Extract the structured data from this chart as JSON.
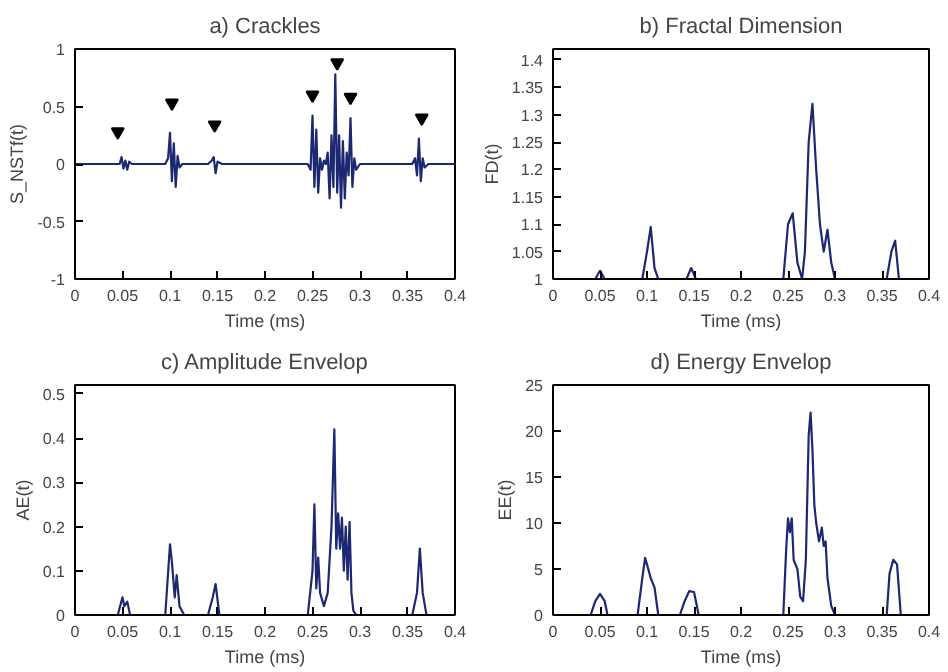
{
  "chart_data": [
    {
      "type": "line",
      "title": "a) Crackles",
      "xlabel": "Time (ms)",
      "ylabel": "S_NSTf(t)",
      "xlim": [
        0,
        0.4
      ],
      "ylim": [
        -1,
        1
      ],
      "xticks": [
        0,
        0.05,
        0.1,
        0.15,
        0.2,
        0.25,
        0.3,
        0.35,
        0.4
      ],
      "yticks": [
        -1,
        -0.5,
        0,
        0.5,
        1
      ],
      "grid": false,
      "series": [
        {
          "color": "#1c2872",
          "x": [
            0,
            0.047,
            0.049,
            0.051,
            0.053,
            0.055,
            0.057,
            0.06,
            0.095,
            0.098,
            0.1,
            0.102,
            0.104,
            0.106,
            0.108,
            0.11,
            0.113,
            0.14,
            0.144,
            0.146,
            0.148,
            0.15,
            0.155,
            0.245,
            0.248,
            0.25,
            0.252,
            0.254,
            0.256,
            0.258,
            0.26,
            0.262,
            0.264,
            0.266,
            0.268,
            0.27,
            0.272,
            0.274,
            0.276,
            0.278,
            0.28,
            0.282,
            0.284,
            0.286,
            0.288,
            0.29,
            0.292,
            0.294,
            0.296,
            0.3,
            0.355,
            0.358,
            0.36,
            0.362,
            0.364,
            0.366,
            0.368,
            0.372,
            0.4
          ],
          "values": [
            0,
            0,
            0.06,
            -0.04,
            0.03,
            -0.05,
            0.02,
            0,
            0,
            0.05,
            0.27,
            -0.15,
            0.18,
            -0.2,
            0.07,
            -0.03,
            0,
            0,
            0.03,
            0.06,
            -0.08,
            0.02,
            0,
            0,
            -0.05,
            0.42,
            -0.2,
            0.3,
            -0.25,
            0.05,
            -0.05,
            0.03,
            0,
            0.1,
            -0.3,
            0.25,
            -0.2,
            0.78,
            -0.25,
            0.25,
            -0.38,
            0.2,
            -0.3,
            0.1,
            -0.1,
            0.4,
            -0.2,
            0.05,
            -0.05,
            0,
            0,
            0.05,
            -0.1,
            0.22,
            -0.15,
            0.05,
            -0.03,
            0,
            0
          ]
        },
        {
          "type": "scatter",
          "marker": "triangle",
          "color": "#000000",
          "x": [
            0.045,
            0.102,
            0.147,
            0.25,
            0.276,
            0.29,
            0.365
          ],
          "values": [
            0.28,
            0.53,
            0.34,
            0.6,
            0.88,
            0.58,
            0.4
          ]
        }
      ]
    },
    {
      "type": "line",
      "title": "b) Fractal Dimension",
      "xlabel": "Time (ms)",
      "ylabel": "FD(t)",
      "xlim": [
        0,
        0.4
      ],
      "ylim": [
        1,
        1.42
      ],
      "xticks": [
        0,
        0.05,
        0.1,
        0.15,
        0.2,
        0.25,
        0.3,
        0.35,
        0.4
      ],
      "yticks": [
        1,
        1.05,
        1.1,
        1.15,
        1.2,
        1.25,
        1.3,
        1.35,
        1.4
      ],
      "grid": false,
      "series": [
        {
          "color": "#1c2872",
          "x": [
            0,
            0.045,
            0.05,
            0.055,
            0.095,
            0.1,
            0.104,
            0.108,
            0.112,
            0.142,
            0.147,
            0.152,
            0.245,
            0.25,
            0.255,
            0.26,
            0.265,
            0.268,
            0.272,
            0.276,
            0.28,
            0.284,
            0.288,
            0.292,
            0.296,
            0.3,
            0.355,
            0.36,
            0.364,
            0.368,
            0.4
          ],
          "values": [
            1,
            1,
            1.015,
            1,
            1,
            1.05,
            1.095,
            1.02,
            1,
            1,
            1.02,
            1,
            1,
            1.1,
            1.12,
            1.03,
            1,
            1.05,
            1.25,
            1.32,
            1.2,
            1.1,
            1.05,
            1.09,
            1.03,
            1,
            1,
            1.05,
            1.07,
            1,
            1
          ]
        }
      ]
    },
    {
      "type": "line",
      "title": "c) Amplitude Envelop",
      "xlabel": "Time (ms)",
      "ylabel": "AE(t)",
      "xlim": [
        0,
        0.4
      ],
      "ylim": [
        0,
        0.52
      ],
      "xticks": [
        0,
        0.05,
        0.1,
        0.15,
        0.2,
        0.25,
        0.3,
        0.35,
        0.4
      ],
      "yticks": [
        0,
        0.1,
        0.2,
        0.3,
        0.4,
        0.5
      ],
      "grid": false,
      "series": [
        {
          "color": "#1c2872",
          "x": [
            0,
            0.045,
            0.05,
            0.052,
            0.055,
            0.058,
            0.095,
            0.1,
            0.102,
            0.105,
            0.107,
            0.11,
            0.115,
            0.14,
            0.145,
            0.148,
            0.152,
            0.245,
            0.25,
            0.252,
            0.254,
            0.256,
            0.258,
            0.262,
            0.266,
            0.27,
            0.273,
            0.275,
            0.277,
            0.279,
            0.281,
            0.283,
            0.285,
            0.287,
            0.289,
            0.291,
            0.293,
            0.296,
            0.3,
            0.355,
            0.36,
            0.363,
            0.366,
            0.37,
            0.4
          ],
          "values": [
            0,
            0,
            0.04,
            0.02,
            0.03,
            0,
            0,
            0.16,
            0.12,
            0.04,
            0.09,
            0.02,
            0,
            0,
            0.04,
            0.07,
            0,
            0,
            0.1,
            0.25,
            0.06,
            0.13,
            0.05,
            0.02,
            0.05,
            0.2,
            0.42,
            0.15,
            0.23,
            0.15,
            0.22,
            0.1,
            0.2,
            0.08,
            0.21,
            0.05,
            0.01,
            0,
            0,
            0,
            0.05,
            0.15,
            0.05,
            0,
            0
          ]
        }
      ]
    },
    {
      "type": "line",
      "title": "d) Energy Envelop",
      "xlabel": "Time (ms)",
      "ylabel": "EE(t)",
      "xlim": [
        0,
        0.4
      ],
      "ylim": [
        0,
        25
      ],
      "xticks": [
        0,
        0.05,
        0.1,
        0.15,
        0.2,
        0.25,
        0.3,
        0.35,
        0.4
      ],
      "yticks": [
        0,
        5,
        10,
        15,
        20,
        25
      ],
      "grid": false,
      "series": [
        {
          "color": "#1c2872",
          "x": [
            0,
            0.04,
            0.045,
            0.05,
            0.055,
            0.058,
            0.09,
            0.095,
            0.098,
            0.1,
            0.104,
            0.108,
            0.112,
            0.135,
            0.14,
            0.145,
            0.15,
            0.155,
            0.245,
            0.248,
            0.25,
            0.252,
            0.254,
            0.256,
            0.26,
            0.263,
            0.266,
            0.269,
            0.272,
            0.274,
            0.276,
            0.278,
            0.28,
            0.283,
            0.286,
            0.288,
            0.29,
            0.292,
            0.296,
            0.3,
            0.355,
            0.358,
            0.362,
            0.366,
            0.37,
            0.4
          ],
          "values": [
            0,
            0,
            1.5,
            2.3,
            1.5,
            0,
            0,
            4,
            6.2,
            5.5,
            4,
            3,
            0,
            0,
            1.5,
            2.6,
            2.5,
            0,
            0,
            7,
            10.5,
            9,
            10.5,
            6,
            5,
            2,
            1.5,
            6,
            19.5,
            22,
            18,
            12,
            10,
            8,
            9.5,
            7.5,
            8,
            4,
            1,
            0,
            0,
            4.5,
            6,
            5.5,
            0,
            0
          ]
        }
      ]
    }
  ]
}
